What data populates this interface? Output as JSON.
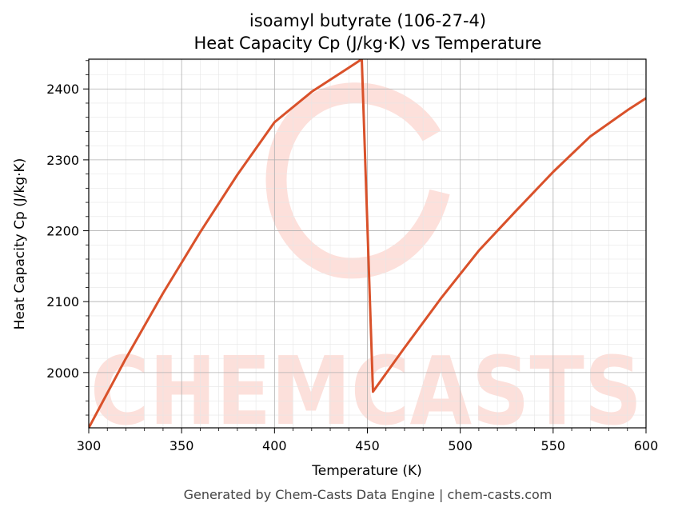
{
  "chart_data": {
    "type": "line",
    "title": "isoamyl butyrate (106-27-4)",
    "subtitle": "Heat Capacity Cp (J/kg·K) vs Temperature",
    "xlabel": "Temperature (K)",
    "ylabel": "Heat Capacity Cp (J/kg·K)",
    "xlim": [
      300,
      600
    ],
    "ylim": [
      1922,
      2442
    ],
    "x_ticks": [
      300,
      350,
      400,
      450,
      500,
      550,
      600
    ],
    "y_ticks": [
      2000,
      2100,
      2200,
      2300,
      2400
    ],
    "grid": true,
    "series_color": "#d9512a",
    "series": [
      {
        "x": [
          300,
          320,
          340,
          360,
          380,
          400,
          420,
          440,
          447,
          453,
          470,
          490,
          510,
          530,
          550,
          570,
          590,
          600
        ],
        "y": [
          1922,
          2020,
          2112,
          2198,
          2279,
          2353,
          2396,
          2430,
          2442,
          1973,
          2035,
          2106,
          2172,
          2228,
          2283,
          2333,
          2370,
          2387
        ]
      }
    ]
  },
  "watermark": "CHEMCASTS",
  "footer": "Generated by Chem-Casts Data Engine | chem-casts.com"
}
